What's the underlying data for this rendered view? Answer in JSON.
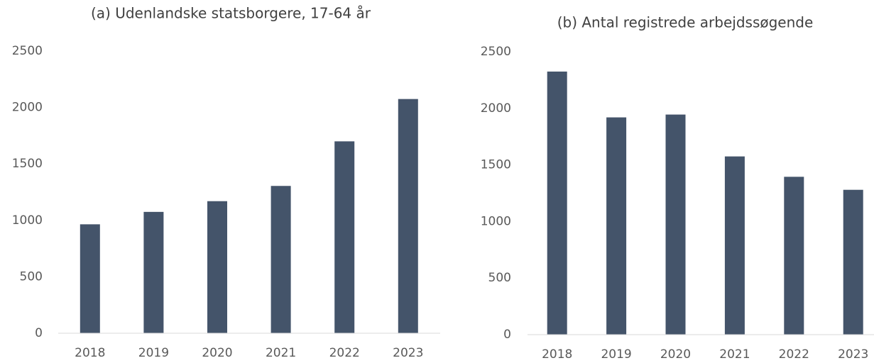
{
  "chart_data": [
    {
      "type": "bar",
      "title": "(a) Udenlandske statsborgere, 17-64 år",
      "categories": [
        "2018",
        "2019",
        "2020",
        "2021",
        "2022",
        "2023"
      ],
      "values": [
        965,
        1075,
        1170,
        1305,
        1700,
        2075
      ],
      "color": "#44546a",
      "ylim": [
        0,
        2500
      ],
      "yticks": [
        0,
        500,
        1000,
        1500,
        2000,
        2500
      ],
      "grid": false
    },
    {
      "type": "bar",
      "title": "(b) Antal registrede arbejdssøgende",
      "categories": [
        "2018",
        "2019",
        "2020",
        "2021",
        "2022",
        "2023"
      ],
      "values": [
        2325,
        1920,
        1945,
        1575,
        1395,
        1280
      ],
      "color": "#44546a",
      "ylim": [
        0,
        2500
      ],
      "yticks": [
        0,
        500,
        1000,
        1500,
        2000,
        2500
      ],
      "grid": false
    }
  ]
}
